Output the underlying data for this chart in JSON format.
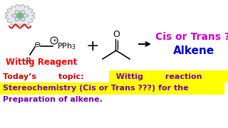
{
  "bg_color": "#ffffff",
  "wittig_label": "Wittig Reagent",
  "wittig_label_color": "#ff0000",
  "cis_trans_text": "Cis or Trans ?",
  "cis_trans_color": "#cc00cc",
  "alkene_text": "Alkene",
  "alkene_color": "#0000cc",
  "bottom_line1_red": "Today’s        topic:  ",
  "bottom_line1_blue": "  Wittig        reaction",
  "bottom_line1_red_color": "#cc0000",
  "bottom_line1_blue_color": "#7700aa",
  "bottom_line2": "Stereochemistry (Cis or Trans ???) for the",
  "bottom_line2_color": "#7700aa",
  "bottom_line3": "Preparation of alkene.",
  "bottom_line3_color": "#7700aa",
  "highlight_color": "#ffff00"
}
